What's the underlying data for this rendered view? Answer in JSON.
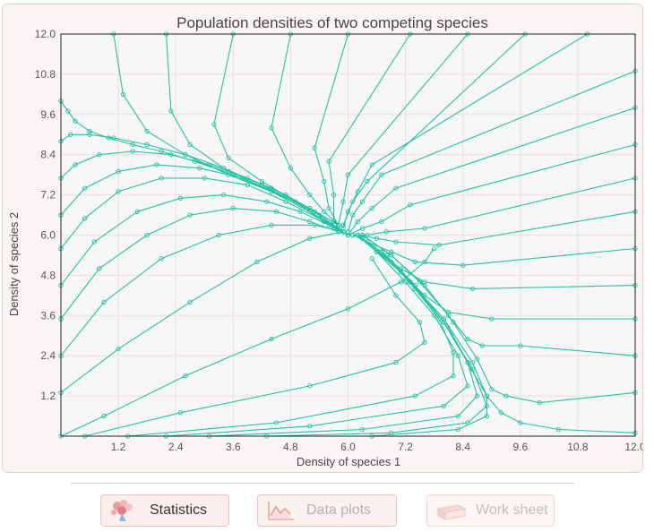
{
  "colors": {
    "curve": "#21c2a4",
    "plot_bg": "#f7f7f7",
    "panel_bg": "#faf5f4",
    "grid": "#f0dcd8"
  },
  "chart_data": {
    "type": "line",
    "title": "Population densities of two competing species",
    "xlabel": "Density of species 1",
    "ylabel": "Density of species 2",
    "xlim": [
      0,
      12.0
    ],
    "ylim": [
      0,
      12.0
    ],
    "xticks": [
      "1.2",
      "2.4",
      "3.6",
      "4.8",
      "6.0",
      "7.2",
      "8.4",
      "9.6",
      "10.8",
      "12.0"
    ],
    "yticks": [
      "1.2",
      "2.4",
      "3.6",
      "4.8",
      "6.0",
      "7.2",
      "8.4",
      "9.6",
      "10.8",
      "12.0"
    ],
    "grid": true,
    "equilibrium": [
      6.0,
      6.0
    ],
    "series": [
      {
        "x": [
          0.0,
          0.15,
          0.3,
          0.6,
          1.0,
          1.5,
          2.1,
          2.8,
          3.6,
          4.4,
          5.2,
          5.8
        ],
        "y": [
          10.0,
          9.7,
          9.4,
          9.1,
          8.9,
          8.7,
          8.5,
          8.2,
          7.8,
          7.3,
          6.7,
          6.2
        ]
      },
      {
        "x": [
          0.0,
          0.2,
          0.6,
          1.1,
          1.8,
          2.6,
          3.4,
          4.2,
          5.0,
          5.7
        ],
        "y": [
          8.8,
          9.0,
          9.0,
          8.9,
          8.7,
          8.4,
          8.0,
          7.5,
          6.9,
          6.2
        ]
      },
      {
        "x": [
          0.0,
          0.3,
          0.8,
          1.5,
          2.3,
          3.1,
          3.9,
          4.7,
          5.4,
          5.9
        ],
        "y": [
          7.7,
          8.1,
          8.4,
          8.5,
          8.4,
          8.1,
          7.7,
          7.2,
          6.6,
          6.1
        ]
      },
      {
        "x": [
          0.0,
          0.5,
          1.2,
          2.0,
          2.9,
          3.8,
          4.6,
          5.3,
          5.9
        ],
        "y": [
          6.6,
          7.4,
          7.9,
          8.1,
          8.0,
          7.7,
          7.2,
          6.7,
          6.1
        ]
      },
      {
        "x": [
          0.0,
          0.5,
          1.2,
          2.1,
          3.0,
          3.9,
          4.7,
          5.4,
          5.9
        ],
        "y": [
          5.6,
          6.5,
          7.3,
          7.7,
          7.7,
          7.5,
          7.0,
          6.5,
          6.1
        ]
      },
      {
        "x": [
          0.0,
          0.7,
          1.6,
          2.5,
          3.4,
          4.3,
          5.0,
          5.6,
          6.0
        ],
        "y": [
          4.5,
          5.8,
          6.7,
          7.1,
          7.2,
          7.0,
          6.7,
          6.3,
          6.0
        ]
      },
      {
        "x": [
          0.0,
          0.8,
          1.8,
          2.7,
          3.6,
          4.5,
          5.2,
          5.8
        ],
        "y": [
          3.5,
          5.0,
          6.0,
          6.6,
          6.8,
          6.7,
          6.4,
          6.1
        ]
      },
      {
        "x": [
          0.0,
          0.9,
          2.1,
          3.3,
          4.4,
          5.3,
          5.9
        ],
        "y": [
          2.4,
          4.0,
          5.3,
          6.0,
          6.3,
          6.3,
          6.1
        ]
      },
      {
        "x": [
          0.0,
          1.2,
          2.7,
          4.1,
          5.2,
          5.9
        ],
        "y": [
          1.3,
          2.6,
          4.0,
          5.2,
          5.9,
          6.1
        ]
      },
      {
        "x": [
          0.0,
          0.9,
          2.6,
          4.4,
          6.0,
          7.1,
          7.6,
          7.8
        ],
        "y": [
          0.0,
          0.6,
          1.8,
          2.9,
          3.8,
          4.6,
          5.2,
          5.6
        ]
      },
      {
        "x": [
          0.5,
          2.5,
          5.2,
          7.0,
          7.6,
          7.5,
          7.0,
          6.5
        ],
        "y": [
          0.0,
          0.7,
          1.5,
          2.2,
          2.8,
          3.4,
          4.2,
          5.3
        ]
      },
      {
        "x": [
          1.4,
          4.5,
          7.4,
          8.2,
          8.2,
          7.9,
          7.4,
          6.9,
          6.3
        ],
        "y": [
          0.0,
          0.4,
          1.2,
          1.8,
          2.5,
          3.5,
          4.4,
          5.2,
          5.9
        ]
      },
      {
        "x": [
          2.2,
          5.2,
          8.0,
          8.5,
          8.3,
          7.8,
          7.2,
          6.6
        ],
        "y": [
          0.0,
          0.3,
          0.9,
          1.5,
          2.4,
          3.6,
          4.6,
          5.5
        ]
      },
      {
        "x": [
          3.1,
          6.3,
          8.3,
          8.7,
          8.5,
          8.0,
          7.3,
          6.7
        ],
        "y": [
          0.0,
          0.2,
          0.6,
          1.2,
          2.2,
          3.5,
          4.6,
          5.5
        ]
      },
      {
        "x": [
          4.3,
          6.9,
          8.5,
          8.9,
          8.6,
          8.0,
          7.3,
          6.7
        ],
        "y": [
          0.0,
          0.1,
          0.4,
          0.9,
          2.0,
          3.4,
          4.6,
          5.5
        ]
      },
      {
        "x": [
          6.5,
          8.3,
          8.9,
          8.9,
          8.6,
          8.0,
          7.3,
          6.7
        ],
        "y": [
          0.0,
          0.2,
          0.6,
          1.2,
          2.2,
          3.5,
          4.6,
          5.5
        ]
      },
      {
        "x": [
          12.0,
          10.4,
          9.6,
          9.2,
          8.9,
          8.5,
          8.0,
          7.4,
          6.8,
          6.2
        ],
        "y": [
          0.1,
          0.2,
          0.4,
          0.7,
          1.2,
          2.2,
          3.4,
          4.5,
          5.4,
          6.0
        ]
      },
      {
        "x": [
          12.0,
          10.0,
          9.3,
          9.0,
          8.7,
          8.2,
          7.6,
          6.9,
          6.3
        ],
        "y": [
          1.3,
          1.0,
          1.2,
          1.4,
          2.3,
          3.4,
          4.5,
          5.4,
          6.0
        ]
      },
      {
        "x": [
          12.0,
          9.6,
          8.8,
          8.5,
          8.1,
          7.5,
          6.9,
          6.3
        ],
        "y": [
          2.4,
          2.7,
          2.7,
          2.9,
          3.6,
          4.6,
          5.4,
          6.0
        ]
      },
      {
        "x": [
          12.0,
          9.0,
          8.1,
          7.6,
          7.1,
          6.6,
          6.2
        ],
        "y": [
          3.5,
          3.5,
          3.7,
          4.2,
          4.9,
          5.5,
          6.0
        ]
      },
      {
        "x": [
          12.0,
          8.6,
          7.6,
          7.1,
          6.6,
          6.2
        ],
        "y": [
          4.5,
          4.4,
          4.6,
          5.0,
          5.5,
          6.0
        ]
      },
      {
        "x": [
          12.0,
          8.4,
          7.4,
          6.9,
          6.4,
          6.1
        ],
        "y": [
          5.6,
          5.1,
          5.2,
          5.5,
          5.8,
          6.0
        ]
      },
      {
        "x": [
          12.0,
          7.9,
          7.0,
          6.6,
          6.2
        ],
        "y": [
          6.7,
          5.7,
          5.8,
          5.9,
          6.0
        ]
      },
      {
        "x": [
          12.0,
          7.6,
          6.8,
          6.4,
          6.1
        ],
        "y": [
          7.7,
          6.2,
          6.1,
          6.0,
          6.0
        ]
      },
      {
        "x": [
          12.0,
          7.3,
          6.7,
          6.3,
          6.0
        ],
        "y": [
          8.7,
          6.9,
          6.4,
          6.2,
          6.0
        ]
      },
      {
        "x": [
          12.0,
          7.0,
          6.5,
          6.2,
          6.0
        ],
        "y": [
          9.8,
          7.4,
          6.8,
          6.4,
          6.0
        ]
      },
      {
        "x": [
          12.0,
          6.7,
          6.3,
          6.1,
          6.0
        ],
        "y": [
          10.9,
          7.8,
          7.0,
          6.6,
          6.1
        ]
      },
      {
        "x": [
          11.0,
          6.5,
          6.2,
          6.0,
          5.9
        ],
        "y": [
          12.0,
          8.1,
          7.3,
          6.7,
          6.2
        ]
      },
      {
        "x": [
          9.7,
          6.4,
          6.1,
          5.9
        ],
        "y": [
          12.0,
          7.6,
          7.0,
          6.3
        ]
      },
      {
        "x": [
          8.5,
          6.0,
          5.9,
          5.8
        ],
        "y": [
          12.0,
          7.8,
          7.0,
          6.3
        ]
      },
      {
        "x": [
          7.3,
          5.6,
          5.7,
          5.7
        ],
        "y": [
          12.0,
          8.2,
          7.2,
          6.4
        ]
      },
      {
        "x": [
          6.0,
          5.3,
          5.5,
          5.6,
          5.8
        ],
        "y": [
          12.0,
          8.6,
          7.6,
          6.8,
          6.3
        ]
      },
      {
        "x": [
          4.8,
          4.4,
          4.8,
          5.2,
          5.5,
          5.8
        ],
        "y": [
          12.0,
          9.2,
          8.0,
          7.2,
          6.7,
          6.3
        ]
      },
      {
        "x": [
          3.6,
          3.2,
          3.5,
          4.2,
          4.9,
          5.5
        ],
        "y": [
          12.0,
          9.3,
          8.3,
          7.6,
          7.0,
          6.4
        ]
      },
      {
        "x": [
          2.2,
          2.3,
          2.7,
          3.5,
          4.4,
          5.2,
          5.8
        ],
        "y": [
          12.0,
          9.7,
          8.7,
          7.9,
          7.4,
          6.8,
          6.3
        ]
      },
      {
        "x": [
          1.1,
          1.3,
          1.8,
          2.6,
          3.5,
          4.4,
          5.2,
          5.8
        ],
        "y": [
          12.0,
          10.2,
          9.1,
          8.4,
          7.8,
          7.3,
          6.8,
          6.3
        ]
      }
    ]
  },
  "toolbar": {
    "statistics_label": "Statistics",
    "dataplots_label": "Data plots",
    "worksheet_label": "Work sheet"
  }
}
